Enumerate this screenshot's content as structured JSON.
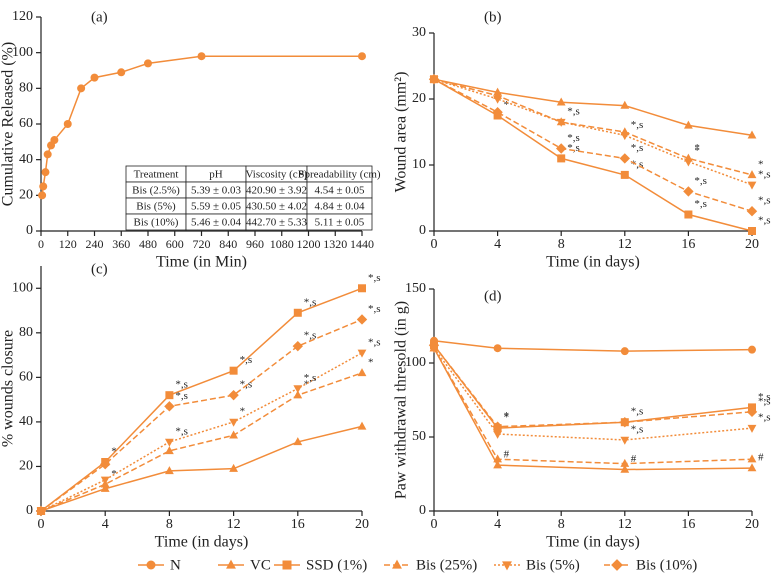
{
  "chart_data": [
    {
      "type": "line",
      "panel_label": "(a)",
      "x_label": "Time (in Min)",
      "y_label": "Cumulative Released (%)",
      "x": [
        5,
        10,
        20,
        30,
        45,
        60,
        120,
        180,
        240,
        360,
        480,
        720,
        1440
      ],
      "series": [
        {
          "color": "#f28c3a",
          "style": "solid",
          "marker": "circle",
          "values": [
            20,
            25,
            33,
            43,
            48,
            51,
            60,
            80,
            86,
            89,
            94,
            98,
            98
          ]
        }
      ],
      "xlim": [
        0,
        1440
      ],
      "xticks": [
        0,
        120,
        240,
        360,
        480,
        600,
        720,
        840,
        960,
        1080,
        1200,
        1320,
        1440
      ],
      "ylim": [
        0,
        120
      ],
      "yticks": [
        0,
        20,
        40,
        60,
        80,
        100,
        120
      ],
      "table": {
        "header": [
          "Treatment",
          "pH",
          "Viscosity (cP)",
          "Spreadability (cm)"
        ],
        "rows": [
          [
            "Bis (2.5%)",
            "5.39 ± 0.03",
            "420.90 ± 3.92",
            "4.54 ± 0.05"
          ],
          [
            "Bis (5%)",
            "5.59 ± 0.05",
            "430.50 ± 4.02",
            "4.84 ± 0.04"
          ],
          [
            "Bis (10%)",
            "5.46 ± 0.04",
            "442.70 ± 5.33",
            "5.11 ± 0.05"
          ]
        ]
      }
    },
    {
      "type": "line",
      "panel_label": "(b)",
      "x_label": "Time (in days)",
      "y_label": "Wound area (mm²)",
      "x": [
        0,
        4,
        8,
        12,
        16,
        20
      ],
      "series": [
        {
          "color": "#f28c3a",
          "style": "solid",
          "marker": "triangle",
          "values": [
            23,
            21,
            19.5,
            19,
            16,
            14.5
          ]
        },
        {
          "color": "#f28c3a",
          "style": "solid",
          "marker": "square",
          "values": [
            23,
            17.5,
            11,
            8.5,
            2.5,
            0
          ],
          "annotations": [
            null,
            "*",
            "*,s",
            "*,s",
            "*,s",
            "*,s"
          ]
        },
        {
          "color": "#f28c3a",
          "style": "dashed",
          "marker": "triangle",
          "values": [
            23,
            20.5,
            16.5,
            15,
            11,
            8.5
          ],
          "annotations": [
            null,
            null,
            null,
            null,
            "*",
            "*"
          ]
        },
        {
          "color": "#f28c3a",
          "style": "dotted",
          "marker": "down",
          "values": [
            23,
            20,
            16.5,
            14.5,
            10.5,
            7
          ],
          "annotations": [
            null,
            null,
            "*,s",
            "*,s",
            "*",
            "*,s"
          ]
        },
        {
          "color": "#f28c3a",
          "style": "dashed",
          "marker": "diamond",
          "values": [
            23,
            18,
            12.5,
            11,
            6,
            3
          ],
          "annotations": [
            null,
            null,
            "*,s",
            "*,s",
            "*,s",
            "*,s"
          ]
        }
      ],
      "xlim": [
        0,
        20
      ],
      "xticks": [
        0,
        4,
        8,
        12,
        16,
        20
      ],
      "ylim": [
        0,
        30
      ],
      "yticks": [
        0,
        10,
        20,
        30
      ]
    },
    {
      "type": "line",
      "panel_label": "(c)",
      "x_label": "Time (in days)",
      "y_label": "% wounds closure",
      "x": [
        0,
        4,
        8,
        12,
        16,
        20
      ],
      "series": [
        {
          "color": "#f28c3a",
          "style": "solid",
          "marker": "triangle",
          "values": [
            0,
            10,
            18,
            19,
            31,
            38
          ]
        },
        {
          "color": "#f28c3a",
          "style": "solid",
          "marker": "square",
          "values": [
            0,
            22,
            52,
            63,
            89,
            100
          ],
          "annotations": [
            null,
            "*",
            "*,s",
            "*,s",
            "*,s",
            "*,s"
          ]
        },
        {
          "color": "#f28c3a",
          "style": "dashed",
          "marker": "triangle",
          "values": [
            0,
            12,
            27,
            34,
            52,
            62
          ],
          "annotations": [
            null,
            "*",
            null,
            null,
            "*",
            "*"
          ]
        },
        {
          "color": "#f28c3a",
          "style": "dotted",
          "marker": "down",
          "values": [
            0,
            14,
            31,
            40,
            55,
            71
          ],
          "annotations": [
            null,
            null,
            "*,s",
            "*",
            "*,s",
            "*,s"
          ]
        },
        {
          "color": "#f28c3a",
          "style": "dashed",
          "marker": "diamond",
          "values": [
            0,
            21,
            47,
            52,
            74,
            86
          ],
          "annotations": [
            null,
            null,
            "*,s",
            "*,s",
            "*,s",
            "*,s"
          ]
        }
      ],
      "xlim": [
        0,
        20
      ],
      "xticks": [
        0,
        4,
        8,
        12,
        16,
        20
      ],
      "ylim": [
        0,
        110
      ],
      "yticks": [
        0,
        20,
        40,
        60,
        80,
        100
      ]
    },
    {
      "type": "line",
      "panel_label": "(d)",
      "x_label": "Time (in days)",
      "y_label": "Paw withdrawal thresold (in g)",
      "x": [
        0,
        4,
        12,
        20
      ],
      "series": [
        {
          "name": "N",
          "color": "#f28c3a",
          "style": "solid",
          "marker": "circle",
          "values": [
            115,
            110,
            108,
            109
          ]
        },
        {
          "name": "VC",
          "color": "#f28c3a",
          "style": "solid",
          "marker": "triangle",
          "values": [
            110,
            31,
            28,
            29
          ],
          "annotations": [
            null,
            "#",
            "#",
            "#"
          ]
        },
        {
          "name": "SSD (1%)",
          "color": "#f28c3a",
          "style": "solid",
          "marker": "square",
          "values": [
            112,
            56,
            60,
            70
          ],
          "annotations": [
            null,
            "*",
            "*,s",
            "*,s"
          ]
        },
        {
          "name": "Bis (25%)",
          "color": "#f28c3a",
          "style": "dashed",
          "marker": "triangle",
          "values": [
            110,
            35,
            32,
            35
          ]
        },
        {
          "name": "Bis (5%)",
          "color": "#f28c3a",
          "style": "dotted",
          "marker": "down",
          "values": [
            110,
            52,
            48,
            56
          ],
          "annotations": [
            null,
            null,
            "*,s",
            "*,s"
          ]
        },
        {
          "name": "Bis (10%)",
          "color": "#f28c3a",
          "style": "dashed",
          "marker": "diamond",
          "values": [
            112,
            57,
            60,
            67
          ],
          "annotations": [
            null,
            "*",
            null,
            "*,s"
          ]
        }
      ],
      "xlim": [
        0,
        20
      ],
      "xticks": [
        0,
        4,
        8,
        12,
        16,
        20
      ],
      "ylim": [
        0,
        150
      ],
      "yticks": [
        0,
        50,
        100,
        150
      ]
    }
  ]
}
